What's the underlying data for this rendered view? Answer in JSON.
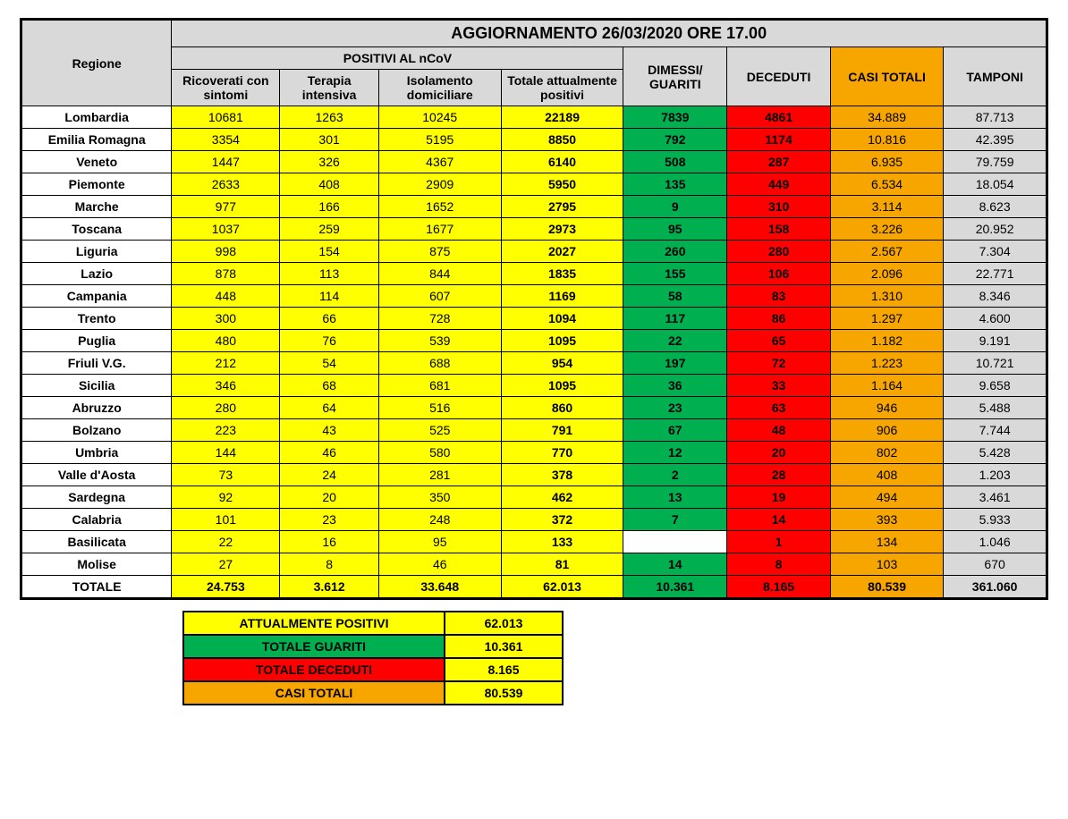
{
  "title_update": "AGGIORNAMENTO 26/03/2020 ORE 17.00",
  "headers": {
    "regione": "Regione",
    "positivi_group": "POSITIVI AL nCoV",
    "ricoverati": "Ricoverati con sintomi",
    "terapia": "Terapia intensiva",
    "isolamento": "Isolamento domiciliare",
    "totale_pos": "Totale attualmente positivi",
    "dimessi": "DIMESSI/ GUARITI",
    "deceduti": "DECEDUTI",
    "casi_totali": "CASI TOTALI",
    "tamponi": "TAMPONI"
  },
  "colors": {
    "yellow": "#ffff00",
    "green": "#00b050",
    "red": "#ff0000",
    "orange": "#f7a600",
    "grey": "#d9d9d9",
    "border": "#000000"
  },
  "rows": [
    {
      "region": "Lombardia",
      "ric": "10681",
      "ter": "1263",
      "iso": "10245",
      "tot": "22189",
      "gua": "7839",
      "dec": "4861",
      "casi": "34.889",
      "tam": "87.713"
    },
    {
      "region": "Emilia Romagna",
      "ric": "3354",
      "ter": "301",
      "iso": "5195",
      "tot": "8850",
      "gua": "792",
      "dec": "1174",
      "casi": "10.816",
      "tam": "42.395"
    },
    {
      "region": "Veneto",
      "ric": "1447",
      "ter": "326",
      "iso": "4367",
      "tot": "6140",
      "gua": "508",
      "dec": "287",
      "casi": "6.935",
      "tam": "79.759"
    },
    {
      "region": "Piemonte",
      "ric": "2633",
      "ter": "408",
      "iso": "2909",
      "tot": "5950",
      "gua": "135",
      "dec": "449",
      "casi": "6.534",
      "tam": "18.054"
    },
    {
      "region": "Marche",
      "ric": "977",
      "ter": "166",
      "iso": "1652",
      "tot": "2795",
      "gua": "9",
      "dec": "310",
      "casi": "3.114",
      "tam": "8.623"
    },
    {
      "region": "Toscana",
      "ric": "1037",
      "ter": "259",
      "iso": "1677",
      "tot": "2973",
      "gua": "95",
      "dec": "158",
      "casi": "3.226",
      "tam": "20.952"
    },
    {
      "region": "Liguria",
      "ric": "998",
      "ter": "154",
      "iso": "875",
      "tot": "2027",
      "gua": "260",
      "dec": "280",
      "casi": "2.567",
      "tam": "7.304"
    },
    {
      "region": "Lazio",
      "ric": "878",
      "ter": "113",
      "iso": "844",
      "tot": "1835",
      "gua": "155",
      "dec": "106",
      "casi": "2.096",
      "tam": "22.771"
    },
    {
      "region": "Campania",
      "ric": "448",
      "ter": "114",
      "iso": "607",
      "tot": "1169",
      "gua": "58",
      "dec": "83",
      "casi": "1.310",
      "tam": "8.346"
    },
    {
      "region": "Trento",
      "ric": "300",
      "ter": "66",
      "iso": "728",
      "tot": "1094",
      "gua": "117",
      "dec": "86",
      "casi": "1.297",
      "tam": "4.600"
    },
    {
      "region": "Puglia",
      "ric": "480",
      "ter": "76",
      "iso": "539",
      "tot": "1095",
      "gua": "22",
      "dec": "65",
      "casi": "1.182",
      "tam": "9.191"
    },
    {
      "region": "Friuli V.G.",
      "ric": "212",
      "ter": "54",
      "iso": "688",
      "tot": "954",
      "gua": "197",
      "dec": "72",
      "casi": "1.223",
      "tam": "10.721"
    },
    {
      "region": "Sicilia",
      "ric": "346",
      "ter": "68",
      "iso": "681",
      "tot": "1095",
      "gua": "36",
      "dec": "33",
      "casi": "1.164",
      "tam": "9.658"
    },
    {
      "region": "Abruzzo",
      "ric": "280",
      "ter": "64",
      "iso": "516",
      "tot": "860",
      "gua": "23",
      "dec": "63",
      "casi": "946",
      "tam": "5.488"
    },
    {
      "region": "Bolzano",
      "ric": "223",
      "ter": "43",
      "iso": "525",
      "tot": "791",
      "gua": "67",
      "dec": "48",
      "casi": "906",
      "tam": "7.744"
    },
    {
      "region": "Umbria",
      "ric": "144",
      "ter": "46",
      "iso": "580",
      "tot": "770",
      "gua": "12",
      "dec": "20",
      "casi": "802",
      "tam": "5.428"
    },
    {
      "region": "Valle d'Aosta",
      "ric": "73",
      "ter": "24",
      "iso": "281",
      "tot": "378",
      "gua": "2",
      "dec": "28",
      "casi": "408",
      "tam": "1.203"
    },
    {
      "region": "Sardegna",
      "ric": "92",
      "ter": "20",
      "iso": "350",
      "tot": "462",
      "gua": "13",
      "dec": "19",
      "casi": "494",
      "tam": "3.461"
    },
    {
      "region": "Calabria",
      "ric": "101",
      "ter": "23",
      "iso": "248",
      "tot": "372",
      "gua": "7",
      "dec": "14",
      "casi": "393",
      "tam": "5.933"
    },
    {
      "region": "Basilicata",
      "ric": "22",
      "ter": "16",
      "iso": "95",
      "tot": "133",
      "gua": "",
      "dec": "1",
      "casi": "134",
      "tam": "1.046"
    },
    {
      "region": "Molise",
      "ric": "27",
      "ter": "8",
      "iso": "46",
      "tot": "81",
      "gua": "14",
      "dec": "8",
      "casi": "103",
      "tam": "670"
    }
  ],
  "total_label": "TOTALE",
  "totals": {
    "ric": "24.753",
    "ter": "3.612",
    "iso": "33.648",
    "tot": "62.013",
    "gua": "10.361",
    "dec": "8.165",
    "casi": "80.539",
    "tam": "361.060"
  },
  "summary": [
    {
      "label": "ATTUALMENTE POSITIVI",
      "value": "62.013",
      "label_bg": "#ffff00",
      "val_bg": "#ffff00"
    },
    {
      "label": "TOTALE GUARITI",
      "value": "10.361",
      "label_bg": "#00b050",
      "val_bg": "#ffff00"
    },
    {
      "label": "TOTALE DECEDUTI",
      "value": "8.165",
      "label_bg": "#ff0000",
      "val_bg": "#ffff00"
    },
    {
      "label": "CASI TOTALI",
      "value": "80.539",
      "label_bg": "#f7a600",
      "val_bg": "#ffff00"
    }
  ]
}
